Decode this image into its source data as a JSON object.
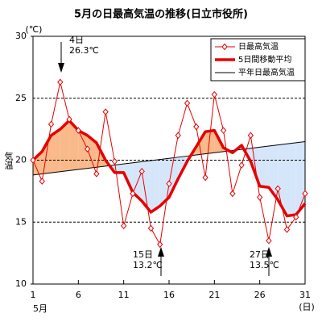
{
  "chart_data": {
    "type": "line",
    "title": "5月の日最高気温の推移(日立市役所)",
    "y_unit": "(℃)",
    "y_label": "気温",
    "x_unit": "(日)",
    "x_label": "5月",
    "x": [
      1,
      2,
      3,
      4,
      5,
      6,
      7,
      8,
      9,
      10,
      11,
      12,
      13,
      14,
      15,
      16,
      17,
      18,
      19,
      20,
      21,
      22,
      23,
      24,
      25,
      26,
      27,
      28,
      29,
      30,
      31
    ],
    "xlim": [
      1,
      31
    ],
    "xticks": [
      1,
      6,
      11,
      16,
      21,
      26,
      31
    ],
    "ylim": [
      10,
      30
    ],
    "yticks": [
      10,
      15,
      20,
      25,
      30
    ],
    "grid": true,
    "legend": "upper right",
    "series": [
      {
        "name": "日最高気温",
        "color": "#e60000",
        "marker": "diamond",
        "values": [
          20.0,
          18.3,
          22.9,
          26.3,
          23.3,
          22.4,
          20.9,
          18.9,
          23.9,
          19.9,
          14.7,
          17.3,
          19.1,
          14.5,
          13.2,
          18.1,
          22.0,
          24.6,
          22.7,
          18.6,
          25.3,
          22.4,
          17.3,
          19.6,
          22.0,
          17.0,
          13.5,
          17.7,
          14.4,
          15.4,
          17.3
        ]
      },
      {
        "name": "5日間移動平均",
        "color": "#e60000",
        "width": 3.5,
        "values": [
          20.0,
          20.7,
          22.0,
          22.5,
          23.2,
          22.4,
          22.0,
          21.4,
          20.0,
          19.0,
          19.0,
          17.4,
          16.7,
          15.8,
          16.3,
          17.0,
          18.5,
          19.9,
          21.1,
          22.3,
          22.4,
          21.0,
          20.6,
          21.2,
          19.9,
          17.9,
          17.8,
          16.8,
          15.5,
          15.6,
          16.5
        ]
      },
      {
        "name": "平年日最高気温",
        "color": "#000000",
        "width": 1,
        "values": [
          18.8,
          18.89,
          18.98,
          19.07,
          19.16,
          19.25,
          19.34,
          19.43,
          19.52,
          19.61,
          19.7,
          19.79,
          19.88,
          19.97,
          20.06,
          20.15,
          20.24,
          20.33,
          20.42,
          20.51,
          20.6,
          20.69,
          20.78,
          20.87,
          20.96,
          21.05,
          21.14,
          21.23,
          21.32,
          21.41,
          21.5
        ]
      }
    ],
    "fill_colors": {
      "above": "#f9b98a",
      "below": "#d6e6fa"
    },
    "annotations": [
      {
        "lines": [
          "4日",
          "26.3℃"
        ]
      },
      {
        "lines": [
          "15日",
          "13.2℃"
        ]
      },
      {
        "lines": [
          "27日",
          "13.5℃"
        ]
      }
    ]
  }
}
